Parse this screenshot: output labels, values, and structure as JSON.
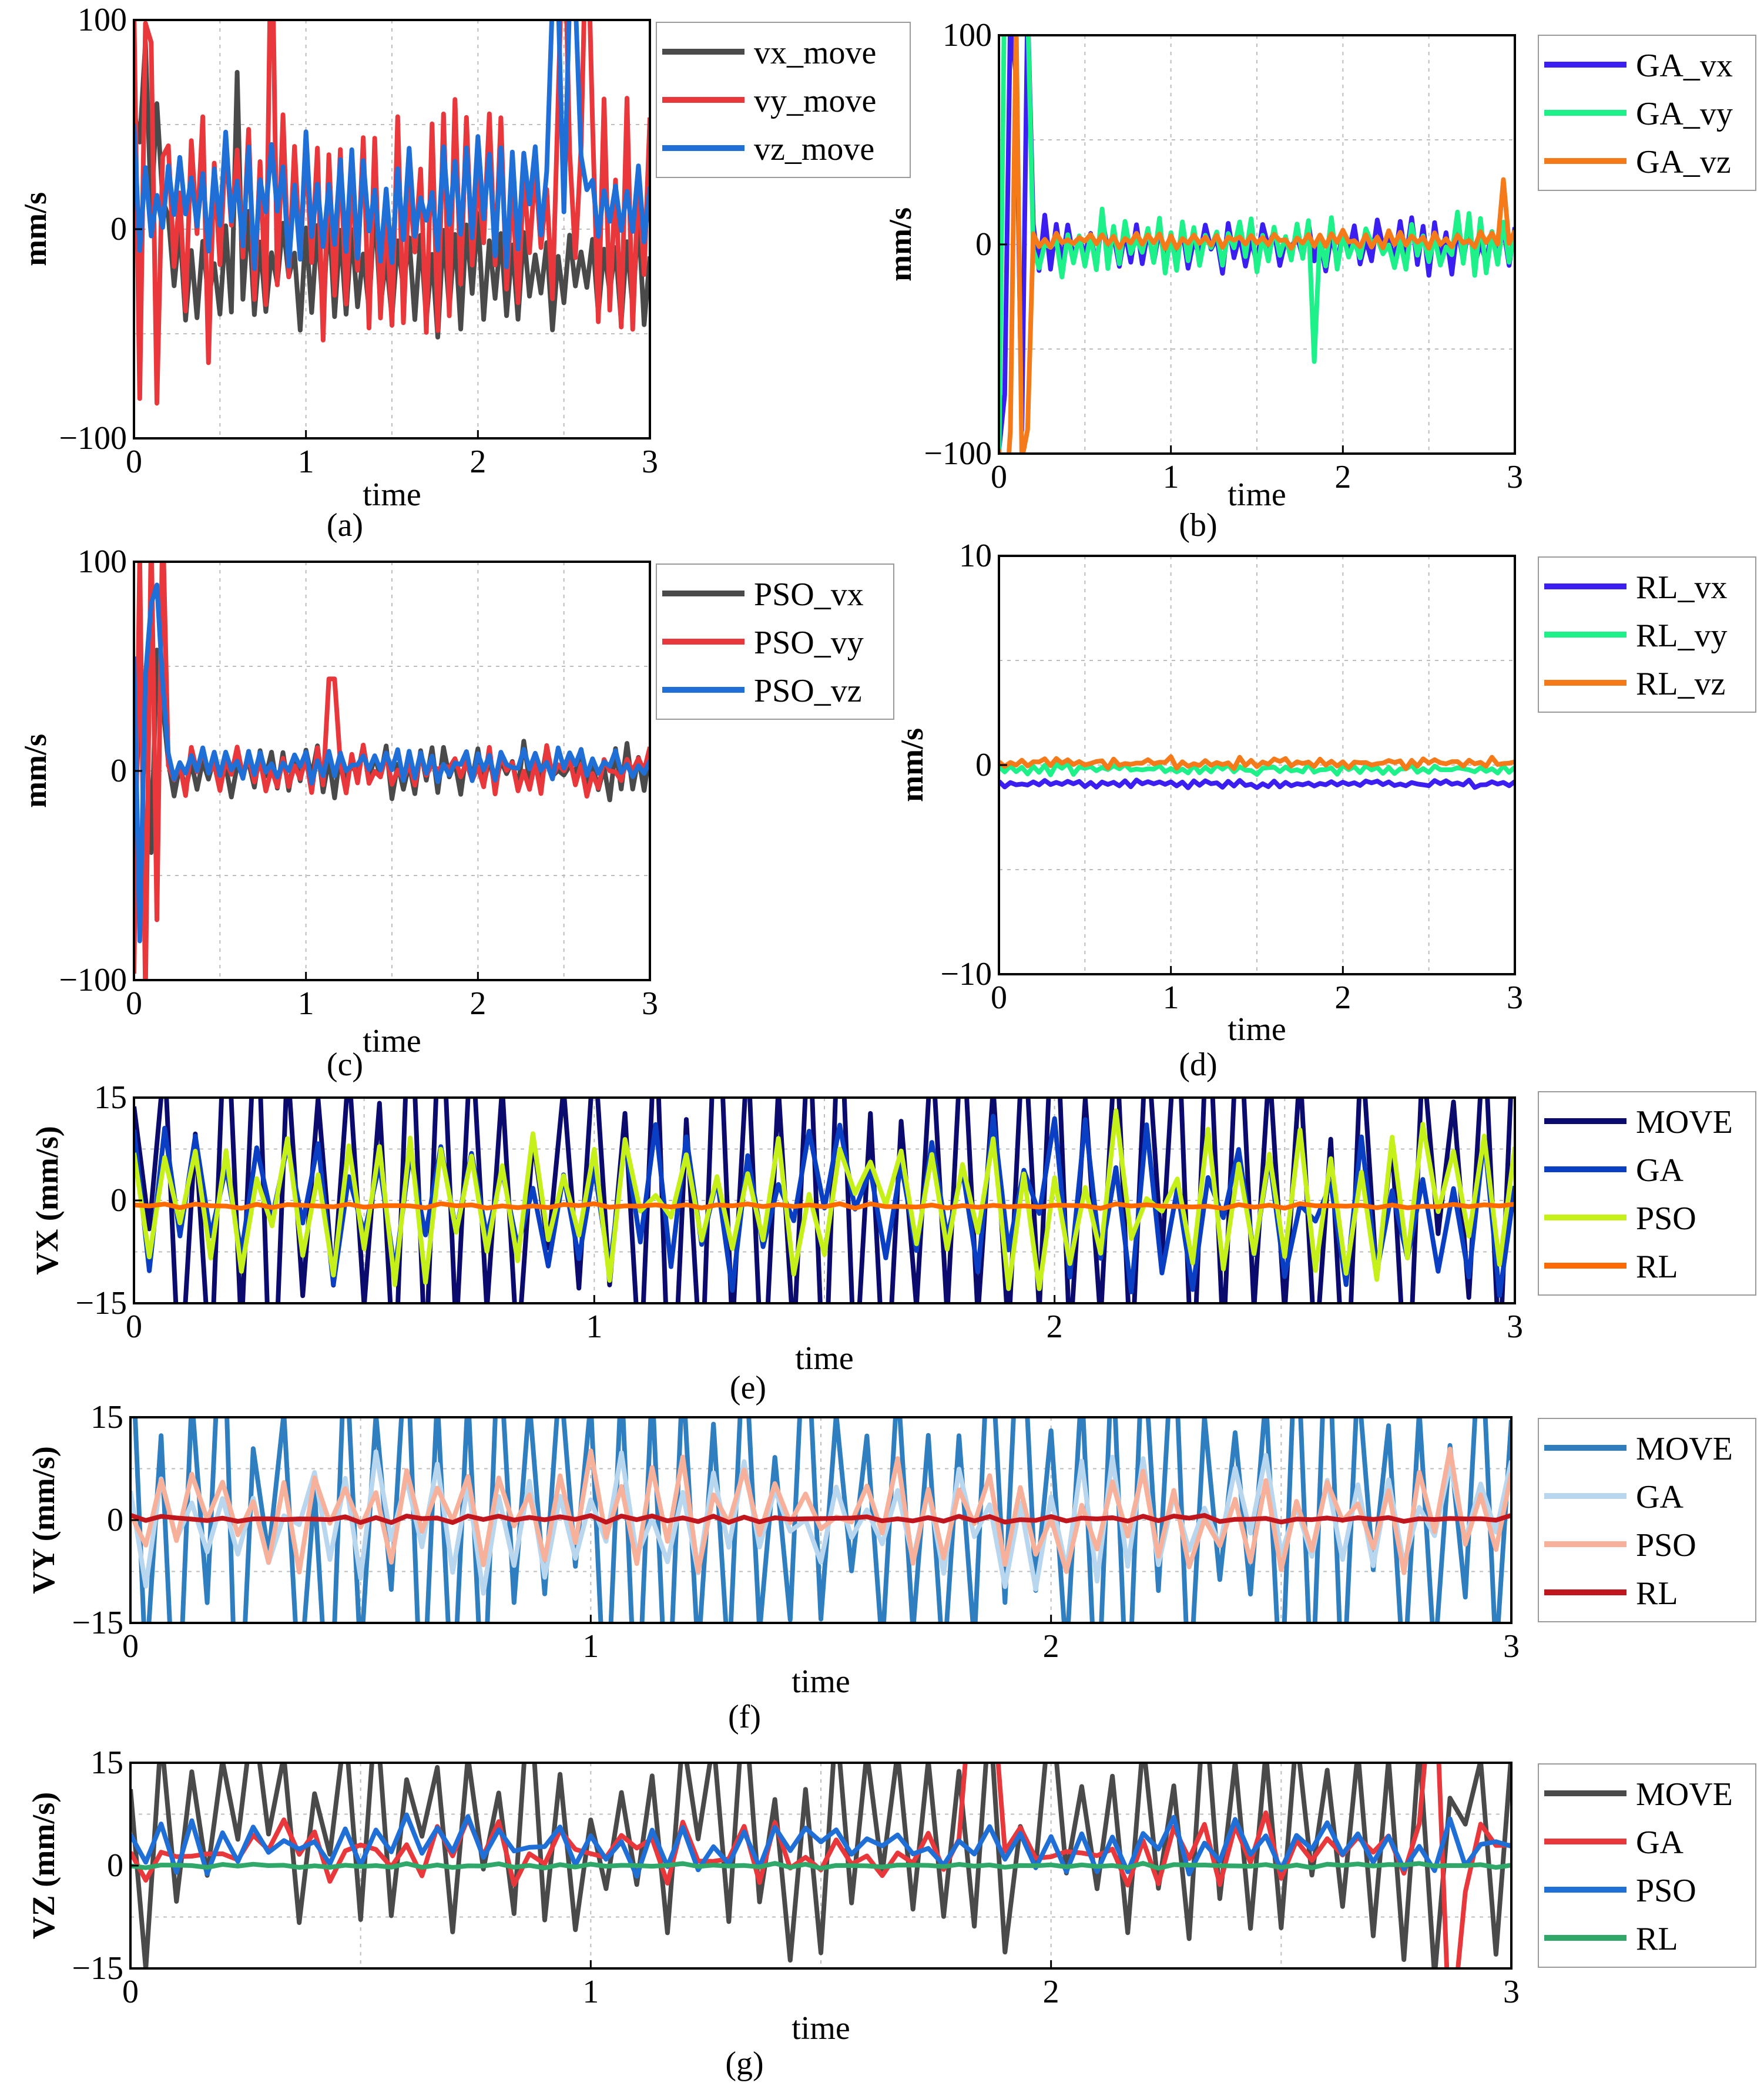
{
  "chart_data": [
    {
      "id": "a",
      "type": "line",
      "caption": "(a)",
      "xlabel": "time",
      "ylabel": "mm/s",
      "xlim": [
        0,
        3
      ],
      "ylim": [
        -100,
        100
      ],
      "xticks": [
        "0",
        "1",
        "2",
        "3"
      ],
      "yticks": [
        "-100",
        "0",
        "100"
      ],
      "series": [
        {
          "name": "vx_move",
          "color": "#4a4a4a",
          "base": -20,
          "amp": 25,
          "early": 60,
          "spike_t": [
            0.6
          ],
          "noise": 10
        },
        {
          "name": "vy_move",
          "color": "#e8383b",
          "base": 5,
          "amp": 45,
          "early": 90,
          "spike_t": [
            0.8,
            2.5,
            2.62
          ],
          "noise": 25
        },
        {
          "name": "vz_move",
          "color": "#1f6fd6",
          "base": 15,
          "amp": 25,
          "early": 10,
          "spike_t": [
            2.45,
            2.55
          ],
          "noise": 15
        }
      ]
    },
    {
      "id": "b",
      "type": "line",
      "caption": "(b)",
      "xlabel": "time",
      "ylabel": "mm/s",
      "xlim": [
        0,
        3
      ],
      "ylim": [
        -100,
        100
      ],
      "xticks": [
        "0",
        "1",
        "2",
        "3"
      ],
      "yticks": [
        "-100",
        "0",
        "100"
      ],
      "series": [
        {
          "name": "GA_vx",
          "color": "#3a1ff0",
          "base": 0,
          "amp": 10,
          "early": 100,
          "spike_t": [],
          "noise": 5
        },
        {
          "name": "GA_vy",
          "color": "#1ef08a",
          "base": 0,
          "amp": 12,
          "early": 100,
          "spike_t": [
            1.82
          ],
          "noise": 8
        },
        {
          "name": "GA_vz",
          "color": "#f47a1a",
          "base": 2,
          "amp": 3,
          "early": 100,
          "spike_t": [
            2.92
          ],
          "noise": 2
        }
      ]
    },
    {
      "id": "c",
      "type": "line",
      "caption": "(c)",
      "xlabel": "time",
      "ylabel": "mm/s",
      "xlim": [
        0,
        3
      ],
      "ylim": [
        -100,
        100
      ],
      "xticks": [
        "0",
        "1",
        "2",
        "3"
      ],
      "yticks": [
        "-100",
        "0",
        "100"
      ],
      "series": [
        {
          "name": "PSO_vx",
          "color": "#4a4a4a",
          "base": 0,
          "amp": 10,
          "early": 35,
          "spike_t": [],
          "noise": 6
        },
        {
          "name": "PSO_vy",
          "color": "#e8383b",
          "base": 0,
          "amp": 8,
          "early": 100,
          "spike_t": [
            1.15
          ],
          "noise": 6
        },
        {
          "name": "PSO_vz",
          "color": "#1f6fd6",
          "base": 3,
          "amp": 5,
          "early": 60,
          "spike_t": [],
          "noise": 4
        }
      ]
    },
    {
      "id": "d",
      "type": "line",
      "caption": "(d)",
      "xlabel": "time",
      "ylabel": "mm/s",
      "xlim": [
        0,
        3
      ],
      "ylim": [
        -10,
        10
      ],
      "xticks": [
        "0",
        "1",
        "2",
        "3"
      ],
      "yticks": [
        "-10",
        "0",
        "10"
      ],
      "series": [
        {
          "name": "RL_vx",
          "color": "#3a1ff0",
          "base": -0.9,
          "amp": 0.1,
          "early": 0,
          "spike_t": [],
          "noise": 0.1
        },
        {
          "name": "RL_vy",
          "color": "#1ef08a",
          "base": -0.2,
          "amp": 0.15,
          "early": 0,
          "spike_t": [],
          "noise": 0.15
        },
        {
          "name": "RL_vz",
          "color": "#f47a1a",
          "base": 0.1,
          "amp": 0.15,
          "early": 0,
          "spike_t": [],
          "noise": 0.15
        }
      ]
    },
    {
      "id": "e",
      "type": "line",
      "caption": "(e)",
      "xlabel": "time",
      "ylabel": "VX (mm/s)",
      "xlim": [
        0,
        3
      ],
      "ylim": [
        -15,
        15
      ],
      "xticks": [
        "0",
        "1",
        "2",
        "3"
      ],
      "yticks": [
        "-15",
        "0",
        "15"
      ],
      "series": [
        {
          "name": "MOVE",
          "color": "#0b0b6e",
          "base": 0,
          "amp": 30,
          "early": 0,
          "spike_t": [],
          "noise": 10
        },
        {
          "name": "GA",
          "color": "#0a3fc4",
          "base": 0,
          "amp": 10,
          "early": 0,
          "spike_t": [],
          "noise": 5
        },
        {
          "name": "PSO",
          "color": "#c6f019",
          "base": 0,
          "amp": 10,
          "early": 0,
          "spike_t": [],
          "noise": 5
        },
        {
          "name": "RL",
          "color": "#ff6a00",
          "base": -0.8,
          "amp": 0.2,
          "early": 0,
          "spike_t": [],
          "noise": 0.2
        }
      ]
    },
    {
      "id": "f",
      "type": "line",
      "caption": "(f)",
      "xlabel": "time",
      "ylabel": "VY (mm/s)",
      "xlim": [
        0,
        3
      ],
      "ylim": [
        -15,
        15
      ],
      "xticks": [
        "0",
        "1",
        "2",
        "3"
      ],
      "yticks": [
        "-15",
        "0",
        "15"
      ],
      "series": [
        {
          "name": "MOVE",
          "color": "#2f7fc0",
          "base": 0,
          "amp": 30,
          "early": 0,
          "spike_t": [],
          "noise": 10
        },
        {
          "name": " GA",
          "color": "#b9d6ef",
          "base": 0,
          "amp": 8,
          "early": 0,
          "spike_t": [],
          "noise": 4
        },
        {
          "name": "PSO",
          "color": "#f7b099",
          "base": 0,
          "amp": 7,
          "early": 0,
          "spike_t": [],
          "noise": 4
        },
        {
          "name": "RL",
          "color": "#c0171f",
          "base": 0.2,
          "amp": 0.3,
          "early": 0,
          "spike_t": [],
          "noise": 0.3
        }
      ]
    },
    {
      "id": "g",
      "type": "line",
      "caption": "(g)",
      "xlabel": "time",
      "ylabel": "VZ (mm/s)",
      "xlim": [
        0,
        3
      ],
      "ylim": [
        -15,
        15
      ],
      "xticks": [
        "0",
        "1",
        "2",
        "3"
      ],
      "yticks": [
        "-15",
        "0",
        "15"
      ],
      "series": [
        {
          "name": "MOVE",
          "color": "#4a4a4a",
          "base": 5,
          "amp": 15,
          "early": 0,
          "spike_t": [],
          "noise": 8
        },
        {
          "name": "GA",
          "color": "#e8383b",
          "base": 2,
          "amp": 3,
          "early": 0,
          "spike_t": [
            1.85,
            2.85
          ],
          "noise": 3
        },
        {
          "name": "PSO",
          "color": "#1f6fd6",
          "base": 3,
          "amp": 3,
          "early": 0,
          "spike_t": [],
          "noise": 2
        },
        {
          "name": "RL",
          "color": "#2fa86a",
          "base": 0,
          "amp": 0.2,
          "early": 0,
          "spike_t": [],
          "noise": 0.2
        }
      ]
    }
  ]
}
